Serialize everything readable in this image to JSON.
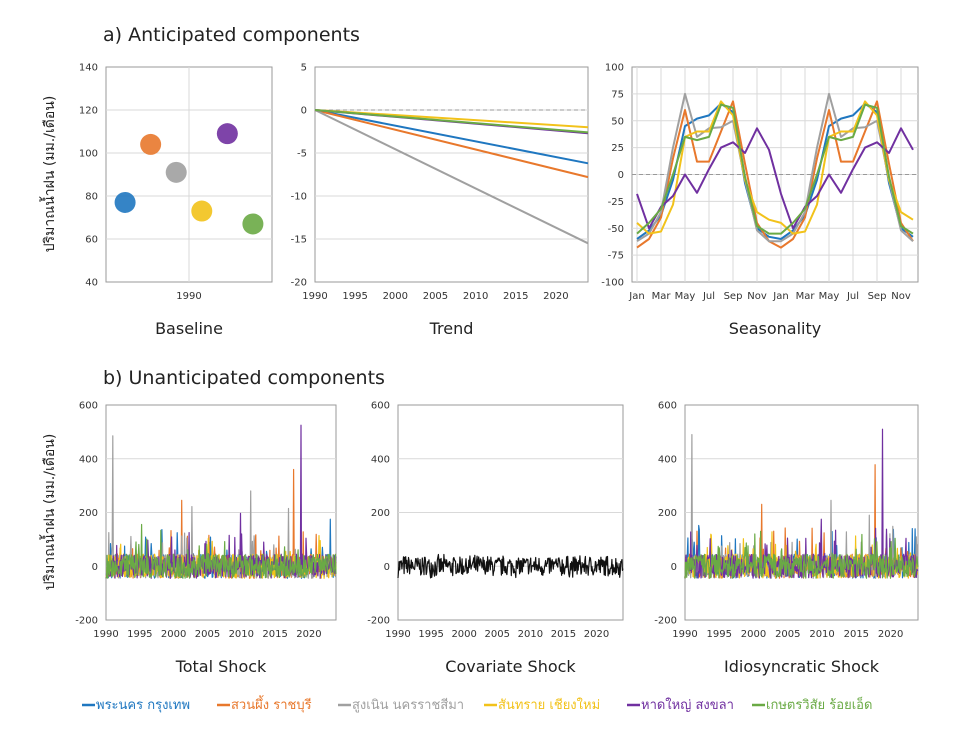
{
  "colors": {
    "bangkok": "#1f77c0",
    "ratchaburi": "#e8782c",
    "nakhon_ratchasima": "#a0a0a0",
    "chiang_mai": "#f2c21a",
    "songkhla": "#7030a0",
    "roi_et": "#6aaa45",
    "covariate": "#111111"
  },
  "section_a_title": "a) Anticipated components",
  "section_b_title": "b) Unanticipated components",
  "y_axis_label": "ปริมาณน้ำฝน (มม./เดือน)",
  "legend": [
    {
      "label": "พระนคร กรุงเทพ",
      "color": "#1f77c0"
    },
    {
      "label": "สวนผึ้ง ราชบุรี",
      "color": "#e8782c"
    },
    {
      "label": "สูงเนิน นครราชสีมา",
      "color": "#a0a0a0"
    },
    {
      "label": "สันทราย เชียงใหม่",
      "color": "#f2c21a"
    },
    {
      "label": "หาดใหญ่ สงขลา",
      "color": "#7030a0"
    },
    {
      "label": "เกษตรวิสัย ร้อยเอ็ด",
      "color": "#6aaa45"
    }
  ],
  "chart_data": [
    {
      "type": "scatter",
      "title": "Baseline",
      "x_tick_labels": [
        "1990"
      ],
      "ylim": [
        40,
        140
      ],
      "y_ticks": [
        "40",
        "60",
        "80",
        "100",
        "120",
        "140"
      ],
      "points": [
        {
          "series": "พระนคร กรุงเทพ",
          "value": 77
        },
        {
          "series": "สวนผึ้ง ราชบุรี",
          "value": 104
        },
        {
          "series": "สูงเนิน นครราชสีมา",
          "value": 91
        },
        {
          "series": "สันทราย เชียงใหม่",
          "value": 73
        },
        {
          "series": "หาดใหญ่ สงขลา",
          "value": 109
        },
        {
          "series": "เกษตรวิสัย ร้อยเอ็ด",
          "value": 67
        }
      ]
    },
    {
      "type": "line",
      "title": "Trend",
      "x": [
        1990,
        2024
      ],
      "x_ticks": [
        "1990",
        "1995",
        "2000",
        "2005",
        "2010",
        "2015",
        "2020"
      ],
      "ylim": [
        -20,
        5
      ],
      "y_ticks": [
        "-20",
        "-15",
        "-10",
        "-5",
        "0",
        "5"
      ],
      "series": [
        {
          "name": "พระนคร กรุงเทพ",
          "values": [
            0,
            -6.2
          ]
        },
        {
          "name": "สวนผึ้ง ราชบุรี",
          "values": [
            0,
            -7.8
          ]
        },
        {
          "name": "สูงเนิน นครราชสีมา",
          "values": [
            0,
            -15.5
          ]
        },
        {
          "name": "สันทราย เชียงใหม่",
          "values": [
            0,
            -2.0
          ]
        },
        {
          "name": "หาดใหญ่ สงขลา",
          "values": [
            0,
            -2.7
          ]
        },
        {
          "name": "เกษตรวิสัย ร้อยเอ็ด",
          "values": [
            0,
            -2.6
          ]
        }
      ]
    },
    {
      "type": "line",
      "title": "Seasonality",
      "months": [
        "Jan",
        "Feb",
        "Mar",
        "Apr",
        "May",
        "Jun",
        "Jul",
        "Aug",
        "Sep",
        "Oct",
        "Nov",
        "Dec",
        "Jan",
        "Feb",
        "Mar",
        "Apr",
        "May",
        "Jun",
        "Jul",
        "Aug",
        "Sep",
        "Oct",
        "Nov",
        "Dec"
      ],
      "x_ticks": [
        "Jan",
        "Mar",
        "May",
        "Jul",
        "Sep",
        "Nov",
        "Jan",
        "Mar",
        "May",
        "Jul",
        "Sep",
        "Nov"
      ],
      "ylim": [
        -100,
        100
      ],
      "y_ticks": [
        "-100",
        "-75",
        "-50",
        "-25",
        "0",
        "25",
        "50",
        "75",
        "100"
      ],
      "series": [
        {
          "name": "พระนคร กรุงเทพ",
          "values": [
            -60,
            -52,
            -38,
            -5,
            45,
            52,
            55,
            66,
            58,
            -8,
            -50,
            -58,
            -60,
            -52,
            -38,
            -5,
            45,
            52,
            55,
            66,
            58,
            -8,
            -50,
            -58
          ]
        },
        {
          "name": "สวนผึ้ง ราชบุรี",
          "values": [
            -68,
            -60,
            -40,
            15,
            60,
            12,
            12,
            40,
            68,
            10,
            -45,
            -62,
            -68,
            -60,
            -40,
            15,
            60,
            12,
            12,
            40,
            68,
            10,
            -45,
            -62
          ]
        },
        {
          "name": "สูงเนิน นครราชสีมา",
          "values": [
            -62,
            -55,
            -35,
            25,
            75,
            35,
            43,
            44,
            50,
            -5,
            -52,
            -62,
            -62,
            -55,
            -35,
            25,
            75,
            35,
            43,
            44,
            50,
            -5,
            -52,
            -62
          ]
        },
        {
          "name": "สันทราย เชียงใหม่",
          "values": [
            -45,
            -55,
            -53,
            -28,
            35,
            40,
            40,
            68,
            55,
            -5,
            -35,
            -42,
            -45,
            -55,
            -53,
            -28,
            35,
            40,
            40,
            68,
            55,
            -5,
            -35,
            -42
          ]
        },
        {
          "name": "หาดใหญ่ สงขลา",
          "values": [
            -18,
            -50,
            -30,
            -20,
            0,
            -17,
            5,
            25,
            30,
            20,
            43,
            23,
            -18,
            -50,
            -30,
            -20,
            0,
            -17,
            5,
            25,
            30,
            20,
            43,
            23
          ]
        },
        {
          "name": "เกษตรวิสัย ร้อยเอ็ด",
          "values": [
            -55,
            -45,
            -32,
            0,
            35,
            32,
            35,
            65,
            62,
            -2,
            -48,
            -55,
            -55,
            -45,
            -32,
            0,
            35,
            32,
            35,
            65,
            62,
            -2,
            -48,
            -55
          ]
        }
      ]
    },
    {
      "type": "line",
      "title": "Total Shock",
      "x_range": [
        1990,
        2024
      ],
      "x_ticks": [
        "1990",
        "1995",
        "2000",
        "2005",
        "2010",
        "2015",
        "2020"
      ],
      "ylim": [
        -200,
        600
      ],
      "y_ticks": [
        "-200",
        "0",
        "200",
        "400",
        "600"
      ],
      "spikes": [
        {
          "series": "สูงเนิน นครราชสีมา",
          "x": 1991.0,
          "value": 485
        },
        {
          "series": "สวนผึ้ง ราชบุรี",
          "x": 2001.2,
          "value": 245
        },
        {
          "series": "สูงเนิน นครราชสีมา",
          "x": 2002.7,
          "value": 222
        },
        {
          "series": "หาดใหญ่ สงขลา",
          "x": 2009.9,
          "value": 197
        },
        {
          "series": "สูงเนิน นครราชสีมา",
          "x": 2011.4,
          "value": 280
        },
        {
          "series": "สวนผึ้ง ราชบุรี",
          "x": 2017.7,
          "value": 360
        },
        {
          "series": "สูงเนิน นครราชสีมา",
          "x": 2017.0,
          "value": 215
        },
        {
          "series": "หาดใหญ่ สงขลา",
          "x": 2018.8,
          "value": 525
        },
        {
          "series": "พระนคร กรุงเทพ",
          "x": 2023.2,
          "value": 175
        }
      ]
    },
    {
      "type": "line",
      "title": "Covariate Shock",
      "x_range": [
        1990,
        2024
      ],
      "x_ticks": [
        "1990",
        "1995",
        "2000",
        "2005",
        "2010",
        "2015",
        "2020"
      ],
      "ylim": [
        -200,
        600
      ],
      "y_ticks": [
        "-200",
        "0",
        "200",
        "400",
        "600"
      ],
      "noise_amplitude": 45
    },
    {
      "type": "line",
      "title": "Idiosyncratic Shock",
      "x_range": [
        1990,
        2024
      ],
      "x_ticks": [
        "1990",
        "1995",
        "2000",
        "2005",
        "2010",
        "2015",
        "2020"
      ],
      "ylim": [
        -200,
        600
      ],
      "y_ticks": [
        "-200",
        "0",
        "200",
        "400",
        "600"
      ],
      "spikes": [
        {
          "series": "สูงเนิน นครราชสีมา",
          "x": 1991.0,
          "value": 490
        },
        {
          "series": "สวนผึ้ง ราชบุรี",
          "x": 2001.2,
          "value": 230
        },
        {
          "series": "สูงเนิน นครราชสีมา",
          "x": 2011.3,
          "value": 245
        },
        {
          "series": "หาดใหญ่ สงขลา",
          "x": 2009.9,
          "value": 175
        },
        {
          "series": "สวนผึ้ง ราชบุรี",
          "x": 2017.7,
          "value": 378
        },
        {
          "series": "สูงเนิน นครราชสีมา",
          "x": 2016.9,
          "value": 190
        },
        {
          "series": "หาดใหญ่ สงขลา",
          "x": 2018.8,
          "value": 510
        },
        {
          "series": "พระนคร กรุงเทพ",
          "x": 2023.2,
          "value": 140
        }
      ]
    }
  ]
}
